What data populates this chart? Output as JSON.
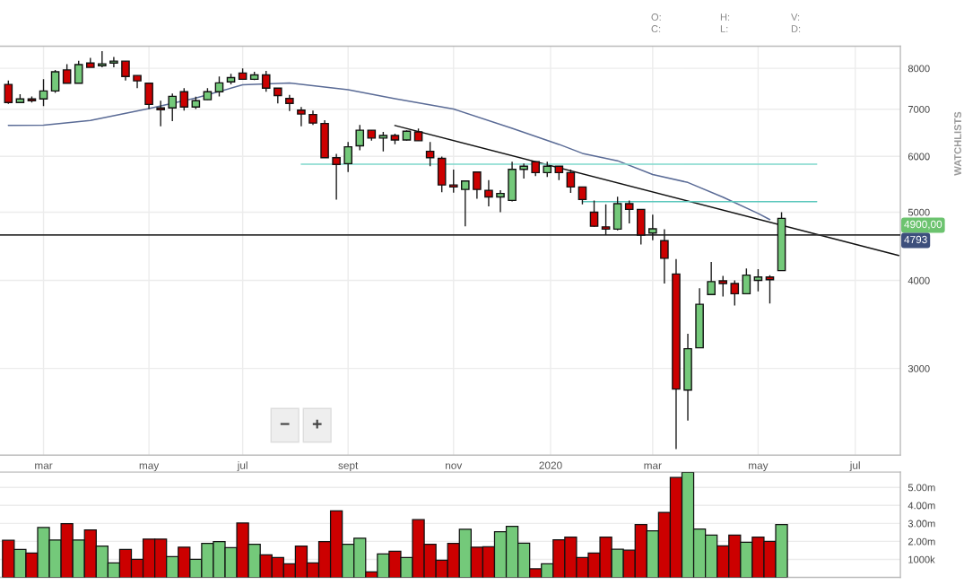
{
  "chart_data": [
    {
      "type": "candlestick",
      "log": true,
      "grid": true,
      "x": [
        "2019-02-11",
        "2019-02-18",
        "2019-02-25",
        "2019-03-04",
        "2019-03-11",
        "2019-03-18",
        "2019-03-25",
        "2019-04-01",
        "2019-04-08",
        "2019-04-15",
        "2019-04-22",
        "2019-04-29",
        "2019-05-06",
        "2019-05-13",
        "2019-05-20",
        "2019-05-27",
        "2019-06-03",
        "2019-06-10",
        "2019-06-17",
        "2019-06-24",
        "2019-07-01",
        "2019-07-08",
        "2019-07-15",
        "2019-07-22",
        "2019-07-29",
        "2019-08-05",
        "2019-08-12",
        "2019-08-19",
        "2019-08-26",
        "2019-09-02",
        "2019-09-09",
        "2019-09-16",
        "2019-09-23",
        "2019-09-30",
        "2019-10-07",
        "2019-10-14",
        "2019-10-21",
        "2019-10-28",
        "2019-11-04",
        "2019-11-11",
        "2019-11-18",
        "2019-11-25",
        "2019-12-02",
        "2019-12-09",
        "2019-12-16",
        "2019-12-23",
        "2019-12-30",
        "2020-01-06",
        "2020-01-13",
        "2020-01-20",
        "2020-01-27",
        "2020-02-03",
        "2020-02-10",
        "2020-02-17",
        "2020-02-24",
        "2020-03-02",
        "2020-03-09",
        "2020-03-16",
        "2020-03-23",
        "2020-03-30",
        "2020-04-06",
        "2020-04-13",
        "2020-04-20",
        "2020-04-27",
        "2020-05-04",
        "2020-05-11",
        "2020-05-18"
      ],
      "ohlc": [
        [
          7590,
          7690,
          7125,
          7155
        ],
        [
          7155,
          7353,
          7155,
          7240
        ],
        [
          7240,
          7300,
          7155,
          7197
        ],
        [
          7240,
          7720,
          7070,
          7430
        ],
        [
          7430,
          7960,
          7385,
          7910
        ],
        [
          7960,
          8110,
          7620,
          7620
        ],
        [
          7620,
          8200,
          7620,
          8100
        ],
        [
          8140,
          8280,
          8025,
          8025
        ],
        [
          8070,
          8460,
          8025,
          8120
        ],
        [
          8140,
          8300,
          8025,
          8190
        ],
        [
          8190,
          8190,
          7685,
          7790
        ],
        [
          7815,
          7815,
          7500,
          7680
        ],
        [
          7620,
          7620,
          7005,
          7110
        ],
        [
          7030,
          7197,
          6620,
          6990
        ],
        [
          7030,
          7370,
          6730,
          7300
        ],
        [
          7410,
          7500,
          6970,
          7050
        ],
        [
          7050,
          7290,
          7005,
          7197
        ],
        [
          7220,
          7500,
          7220,
          7410
        ],
        [
          7410,
          7790,
          7300,
          7630
        ],
        [
          7655,
          7860,
          7590,
          7760
        ],
        [
          7880,
          8000,
          7720,
          7720
        ],
        [
          7720,
          7910,
          7700,
          7830
        ],
        [
          7830,
          7935,
          7410,
          7500
        ],
        [
          7500,
          7500,
          7135,
          7320
        ],
        [
          7250,
          7335,
          6960,
          7135
        ],
        [
          6980,
          7050,
          6620,
          6890
        ],
        [
          6880,
          6970,
          6650,
          6690
        ],
        [
          6680,
          6750,
          5975,
          5975
        ],
        [
          5975,
          6050,
          5210,
          5845
        ],
        [
          5860,
          6290,
          5700,
          6190
        ],
        [
          6210,
          6650,
          6120,
          6535
        ],
        [
          6535,
          6535,
          6315,
          6370
        ],
        [
          6370,
          6500,
          6100,
          6425
        ],
        [
          6425,
          6460,
          6245,
          6330
        ],
        [
          6330,
          6535,
          6315,
          6515
        ],
        [
          6500,
          6570,
          6315,
          6315
        ],
        [
          6100,
          6290,
          5810,
          5975
        ],
        [
          5960,
          5995,
          5335,
          5465
        ],
        [
          5465,
          5745,
          5330,
          5430
        ],
        [
          5385,
          5535,
          4775,
          5535
        ],
        [
          5700,
          5700,
          5225,
          5385
        ],
        [
          5370,
          5550,
          5095,
          5255
        ],
        [
          5255,
          5370,
          5000,
          5315
        ],
        [
          5195,
          5895,
          5180,
          5750
        ],
        [
          5750,
          5860,
          5580,
          5810
        ],
        [
          5895,
          5895,
          5625,
          5690
        ],
        [
          5690,
          5895,
          5610,
          5810
        ],
        [
          5810,
          5810,
          5550,
          5690
        ],
        [
          5690,
          5745,
          5325,
          5430
        ],
        [
          5430,
          5430,
          5130,
          5210
        ],
        [
          5000,
          5195,
          4765,
          4775
        ],
        [
          4765,
          5130,
          4640,
          4730
        ],
        [
          4730,
          5260,
          4710,
          5140
        ],
        [
          5140,
          5195,
          4820,
          5045
        ],
        [
          5045,
          5045,
          4500,
          4640
        ],
        [
          4670,
          4960,
          4560,
          4735
        ],
        [
          4555,
          4730,
          3960,
          4300
        ],
        [
          4085,
          4290,
          2305,
          2805
        ],
        [
          2795,
          3360,
          2530,
          3200
        ],
        [
          3210,
          3900,
          3210,
          3700
        ],
        [
          3820,
          4250,
          3820,
          3985
        ],
        [
          3995,
          4060,
          3795,
          3960
        ],
        [
          3960,
          4000,
          3685,
          3830
        ],
        [
          3830,
          4160,
          3830,
          4070
        ],
        [
          4000,
          4150,
          3860,
          4045
        ],
        [
          4045,
          4070,
          3710,
          4010
        ],
        [
          4130,
          5000,
          4130,
          4900
        ]
      ],
      "colors": [
        "#cc0000",
        "#74c97a",
        "#cc0000",
        "#74c97a",
        "#74c97a",
        "#cc0000",
        "#74c97a",
        "#cc0000",
        "#74c97a",
        "#74c97a",
        "#cc0000",
        "#cc0000",
        "#cc0000",
        "#cc0000",
        "#74c97a",
        "#cc0000",
        "#74c97a",
        "#74c97a",
        "#74c97a",
        "#74c97a",
        "#cc0000",
        "#74c97a",
        "#cc0000",
        "#cc0000",
        "#cc0000",
        "#cc0000",
        "#cc0000",
        "#cc0000",
        "#cc0000",
        "#74c97a",
        "#74c97a",
        "#cc0000",
        "#74c97a",
        "#cc0000",
        "#74c97a",
        "#cc0000",
        "#cc0000",
        "#cc0000",
        "#cc0000",
        "#74c97a",
        "#cc0000",
        "#cc0000",
        "#74c97a",
        "#74c97a",
        "#74c97a",
        "#cc0000",
        "#74c97a",
        "#cc0000",
        "#cc0000",
        "#cc0000",
        "#cc0000",
        "#cc0000",
        "#74c97a",
        "#cc0000",
        "#cc0000",
        "#74c97a",
        "#cc0000",
        "#cc0000",
        "#74c97a",
        "#74c97a",
        "#74c97a",
        "#cc0000",
        "#cc0000",
        "#74c97a",
        "#74c97a",
        "#cc0000",
        "#74c97a"
      ],
      "series": [
        {
          "type": "line",
          "color": "#5a6b96",
          "x": [
            "2019-02-11",
            "2019-03-04",
            "2019-04-01",
            "2019-05-06",
            "2019-06-03",
            "2019-07-01",
            "2019-07-29",
            "2019-09-02",
            "2019-09-30",
            "2019-11-04",
            "2019-12-09",
            "2020-01-06",
            "2020-01-20",
            "2020-02-10",
            "2020-03-02",
            "2020-03-23",
            "2020-04-13",
            "2020-05-04",
            "2020-05-11"
          ],
          "values": [
            6640,
            6645,
            6745,
            7015,
            7260,
            7580,
            7625,
            7460,
            7246,
            7005,
            6575,
            6240,
            6060,
            5915,
            5655,
            5510,
            5250,
            4980,
            4880
          ]
        },
        {
          "type": "line",
          "color": "#111111",
          "x": [
            "2019-09-30",
            "2020-07-27"
          ],
          "values": [
            6637,
            4340
          ]
        },
        {
          "type": "line",
          "color": "#7fd8cc",
          "x": [
            "2019-08-05",
            "2020-06-08"
          ],
          "values": [
            5850,
            5850
          ]
        },
        {
          "type": "line",
          "color": "#5cc8bc",
          "x": [
            "2020-01-20",
            "2020-06-08"
          ],
          "values": [
            5175,
            5175
          ]
        }
      ],
      "ref_lines": [
        {
          "axis": "y",
          "value": 4640,
          "color": "#333333"
        }
      ],
      "xlim": [
        "2019-02-06",
        "2020-07-28"
      ],
      "xticks": [
        {
          "value": "2019-03-04",
          "label": "mar"
        },
        {
          "value": "2019-05-06",
          "label": "may"
        },
        {
          "value": "2019-07-01",
          "label": "jul"
        },
        {
          "value": "2019-09-02",
          "label": "sept"
        },
        {
          "value": "2019-11-04",
          "label": "nov"
        },
        {
          "value": "2020-01-01",
          "label": "2020"
        },
        {
          "value": "2020-03-02",
          "label": "mar"
        },
        {
          "value": "2020-05-04",
          "label": "may"
        },
        {
          "value": "2020-07-01",
          "label": "jul"
        }
      ],
      "ylim": [
        2260,
        8600
      ],
      "yticks": [
        3000,
        4000,
        5000,
        6000,
        7000,
        8000
      ],
      "annotations": [
        "4900,00",
        "4793",
        "O:",
        "C:",
        "H:",
        "L:",
        "V:",
        "D:",
        "WATCHLISTS",
        "−",
        "+"
      ]
    },
    {
      "type": "bar",
      "grid": "y",
      "tick_labels": "y",
      "x": [
        "2019-02-11",
        "2019-02-18",
        "2019-02-25",
        "2019-03-04",
        "2019-03-11",
        "2019-03-18",
        "2019-03-25",
        "2019-04-01",
        "2019-04-08",
        "2019-04-15",
        "2019-04-22",
        "2019-04-29",
        "2019-05-06",
        "2019-05-13",
        "2019-05-20",
        "2019-05-27",
        "2019-06-03",
        "2019-06-10",
        "2019-06-17",
        "2019-06-24",
        "2019-07-01",
        "2019-07-08",
        "2019-07-15",
        "2019-07-22",
        "2019-07-29",
        "2019-08-05",
        "2019-08-12",
        "2019-08-19",
        "2019-08-26",
        "2019-09-02",
        "2019-09-09",
        "2019-09-16",
        "2019-09-23",
        "2019-09-30",
        "2019-10-07",
        "2019-10-14",
        "2019-10-21",
        "2019-10-28",
        "2019-11-04",
        "2019-11-11",
        "2019-11-18",
        "2019-11-25",
        "2019-12-02",
        "2019-12-09",
        "2019-12-16",
        "2019-12-23",
        "2019-12-30",
        "2020-01-06",
        "2020-01-13",
        "2020-01-20",
        "2020-01-27",
        "2020-02-03",
        "2020-02-10",
        "2020-02-17",
        "2020-02-24",
        "2020-03-02",
        "2020-03-09",
        "2020-03-16",
        "2020-03-23",
        "2020-03-30",
        "2020-04-06",
        "2020-04-13",
        "2020-04-20",
        "2020-04-27",
        "2020-05-04",
        "2020-05-11",
        "2020-05-18"
      ],
      "values": [
        2060000,
        1550000,
        1350000,
        2770000,
        2080000,
        2980000,
        2080000,
        2640000,
        1740000,
        800000,
        1550000,
        1010000,
        2130000,
        2130000,
        1160000,
        1680000,
        1010000,
        1890000,
        1990000,
        1650000,
        3020000,
        1840000,
        1250000,
        1110000,
        750000,
        1740000,
        800000,
        1990000,
        3700000,
        1840000,
        2180000,
        310000,
        1300000,
        1450000,
        1110000,
        3210000,
        1840000,
        960000,
        1890000,
        2670000,
        1680000,
        1700000,
        2540000,
        2830000,
        1900000,
        480000,
        750000,
        2090000,
        2240000,
        1110000,
        1350000,
        2240000,
        1560000,
        1510000,
        2930000,
        2590000,
        3610000,
        5550000,
        5840000,
        2690000,
        2350000,
        1750000,
        2350000,
        1950000,
        2240000,
        2000000,
        2930000
      ],
      "colors": [
        "#cc0000",
        "#74c97a",
        "#cc0000",
        "#74c97a",
        "#74c97a",
        "#cc0000",
        "#74c97a",
        "#cc0000",
        "#74c97a",
        "#74c97a",
        "#cc0000",
        "#cc0000",
        "#cc0000",
        "#cc0000",
        "#74c97a",
        "#cc0000",
        "#74c97a",
        "#74c97a",
        "#74c97a",
        "#74c97a",
        "#cc0000",
        "#74c97a",
        "#cc0000",
        "#cc0000",
        "#cc0000",
        "#cc0000",
        "#cc0000",
        "#cc0000",
        "#cc0000",
        "#74c97a",
        "#74c97a",
        "#cc0000",
        "#74c97a",
        "#cc0000",
        "#74c97a",
        "#cc0000",
        "#cc0000",
        "#cc0000",
        "#cc0000",
        "#74c97a",
        "#cc0000",
        "#cc0000",
        "#74c97a",
        "#74c97a",
        "#74c97a",
        "#cc0000",
        "#74c97a",
        "#cc0000",
        "#cc0000",
        "#cc0000",
        "#cc0000",
        "#cc0000",
        "#74c97a",
        "#cc0000",
        "#cc0000",
        "#74c97a",
        "#cc0000",
        "#cc0000",
        "#74c97a",
        "#74c97a",
        "#74c97a",
        "#cc0000",
        "#cc0000",
        "#74c97a",
        "#cc0000",
        "#cc0000",
        "#74c97a"
      ],
      "xlim": [
        "2019-02-06",
        "2020-07-28"
      ],
      "ylim": [
        0,
        5850000
      ],
      "yticks": [
        {
          "value": 1000000,
          "label": "1000k"
        },
        {
          "value": 2000000,
          "label": "2.00m"
        },
        {
          "value": 3000000,
          "label": "3.00m"
        },
        {
          "value": 4000000,
          "label": "4.00m"
        },
        {
          "value": 5000000,
          "label": "5.00m"
        }
      ]
    }
  ]
}
